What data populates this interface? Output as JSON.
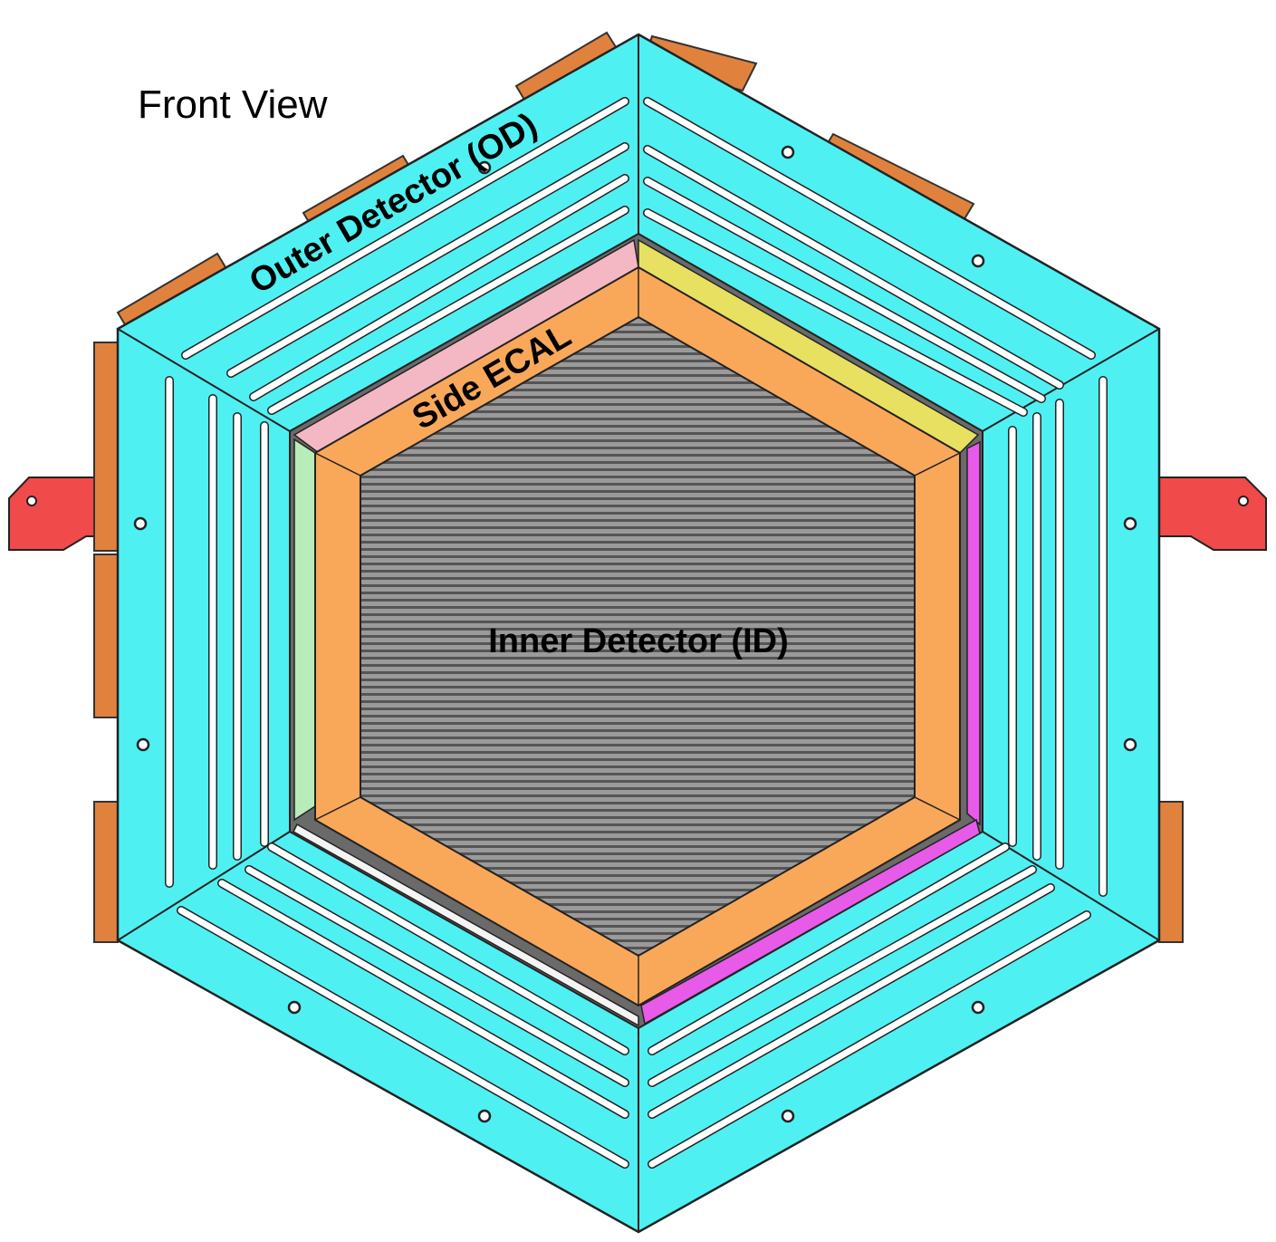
{
  "view_title": "Front View",
  "labels": {
    "outer_detector": "Outer Detector (OD)",
    "side_ecal": "Side ECAL",
    "inner_detector": "Inner Detector (ID)"
  },
  "colors": {
    "outer_detector": "#4ff0f2",
    "side_ecal": "#f9a85a",
    "inner_detector": "#8a8a8a",
    "mounting_bracket": "#f04a4a",
    "electronics_box": "#e0823e",
    "pink_panel": "#f4b8c4",
    "yellow_panel": "#e8e060",
    "green_panel": "#b8ecb8",
    "magenta_panel": "#e85ae8"
  },
  "icons": {
    "mounting_hole": "circle",
    "ventilation_slot": "rounded-slot"
  }
}
